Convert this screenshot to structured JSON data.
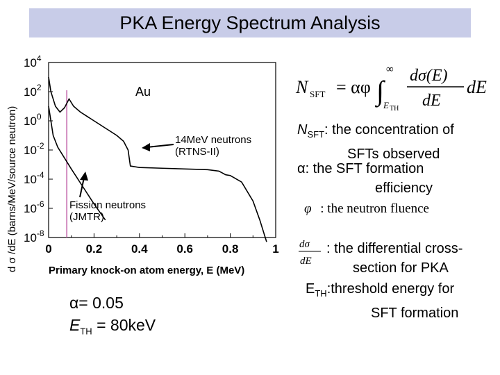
{
  "header": {
    "title": "PKA Energy Spectrum Analysis"
  },
  "chart_data": {
    "type": "line",
    "title": "",
    "xlabel": "Primary knock-on atom energy, E (MeV)",
    "ylabel": "d σ /dE (barns/MeV/source neutron)",
    "xlim": [
      0,
      1
    ],
    "ylim_log10": [
      -8,
      4
    ],
    "y_scale": "log",
    "xticks": [
      "0",
      "0.2",
      "0.4",
      "0.6",
      "0.8",
      "1"
    ],
    "xtick_values": [
      0,
      0.2,
      0.4,
      0.6,
      0.8,
      1
    ],
    "yticks": [
      {
        "base": "10",
        "exp": "4"
      },
      {
        "base": "10",
        "exp": "2"
      },
      {
        "base": "10",
        "exp": "0"
      },
      {
        "base": "10",
        "exp": "-2"
      },
      {
        "base": "10",
        "exp": "-4"
      },
      {
        "base": "10",
        "exp": "-6"
      },
      {
        "base": "10",
        "exp": "-8"
      }
    ],
    "ytick_log_values": [
      4,
      2,
      0,
      -2,
      -4,
      -6,
      -8
    ],
    "grid": false,
    "vline_x": 0.08,
    "element_label": "Au",
    "series": [
      {
        "name": "14MeV neutrons (RTNS-II)",
        "x": [
          0.0,
          0.01,
          0.03,
          0.05,
          0.07,
          0.09,
          0.11,
          0.14,
          0.2,
          0.25,
          0.3,
          0.33,
          0.35,
          0.36,
          0.4,
          0.5,
          0.6,
          0.7,
          0.75,
          0.78,
          0.8,
          0.85,
          0.9,
          0.93,
          0.96
        ],
        "y_log10": [
          3.0,
          2.0,
          1.0,
          0.6,
          0.9,
          1.5,
          1.0,
          0.6,
          0.0,
          -0.5,
          -1.0,
          -1.4,
          -2.0,
          -3.1,
          -3.2,
          -3.25,
          -3.3,
          -3.35,
          -3.45,
          -3.7,
          -3.75,
          -4.2,
          -5.5,
          -6.8,
          -8.3
        ]
      },
      {
        "name": "Fission neutrons (JMTR)",
        "x": [
          0.0,
          0.01,
          0.02,
          0.04,
          0.06,
          0.08,
          0.1,
          0.15,
          0.2,
          0.25
        ],
        "y_log10": [
          1.0,
          0.0,
          -1.0,
          -1.8,
          -2.3,
          -2.8,
          -3.3,
          -4.5,
          -5.7,
          -6.8
        ]
      }
    ],
    "annotations": [
      {
        "line1": "14MeV neutrons",
        "line2": "(RTNS-II)"
      },
      {
        "line1": "Fission neutrons",
        "line2": "(JMTR)"
      }
    ]
  },
  "definitions": {
    "nsft": {
      "sym": "N",
      "sub": "SFT",
      "text": ": the concentration of",
      "text2": "SFTs observed"
    },
    "alpha": {
      "sym": "α",
      "text": ": the SFT formation",
      "text2": "efficiency"
    },
    "phi": {
      "sym": "φ",
      "text": ": the neutron fluence"
    },
    "dsigma": {
      "text": ": the differential cross-",
      "text2": "section for PKA"
    },
    "eth": {
      "sym": "E",
      "sub": "TH",
      "text": ":threshold energy for",
      "text2": "SFT formation"
    }
  },
  "formula": {
    "lhs": "N",
    "lhs_sub": "SFT",
    "eq": "= αφ",
    "upper": "∞",
    "lower": "E",
    "lower_sub": "TH",
    "num": "dσ(E)",
    "den": "dE",
    "tail": "dE",
    "frac_num": "dσ",
    "frac_den": "dE"
  },
  "params": {
    "alpha": "α= 0.05",
    "eth_sym": "E",
    "eth_sub": "TH",
    "eth_val": "= 80keV"
  }
}
